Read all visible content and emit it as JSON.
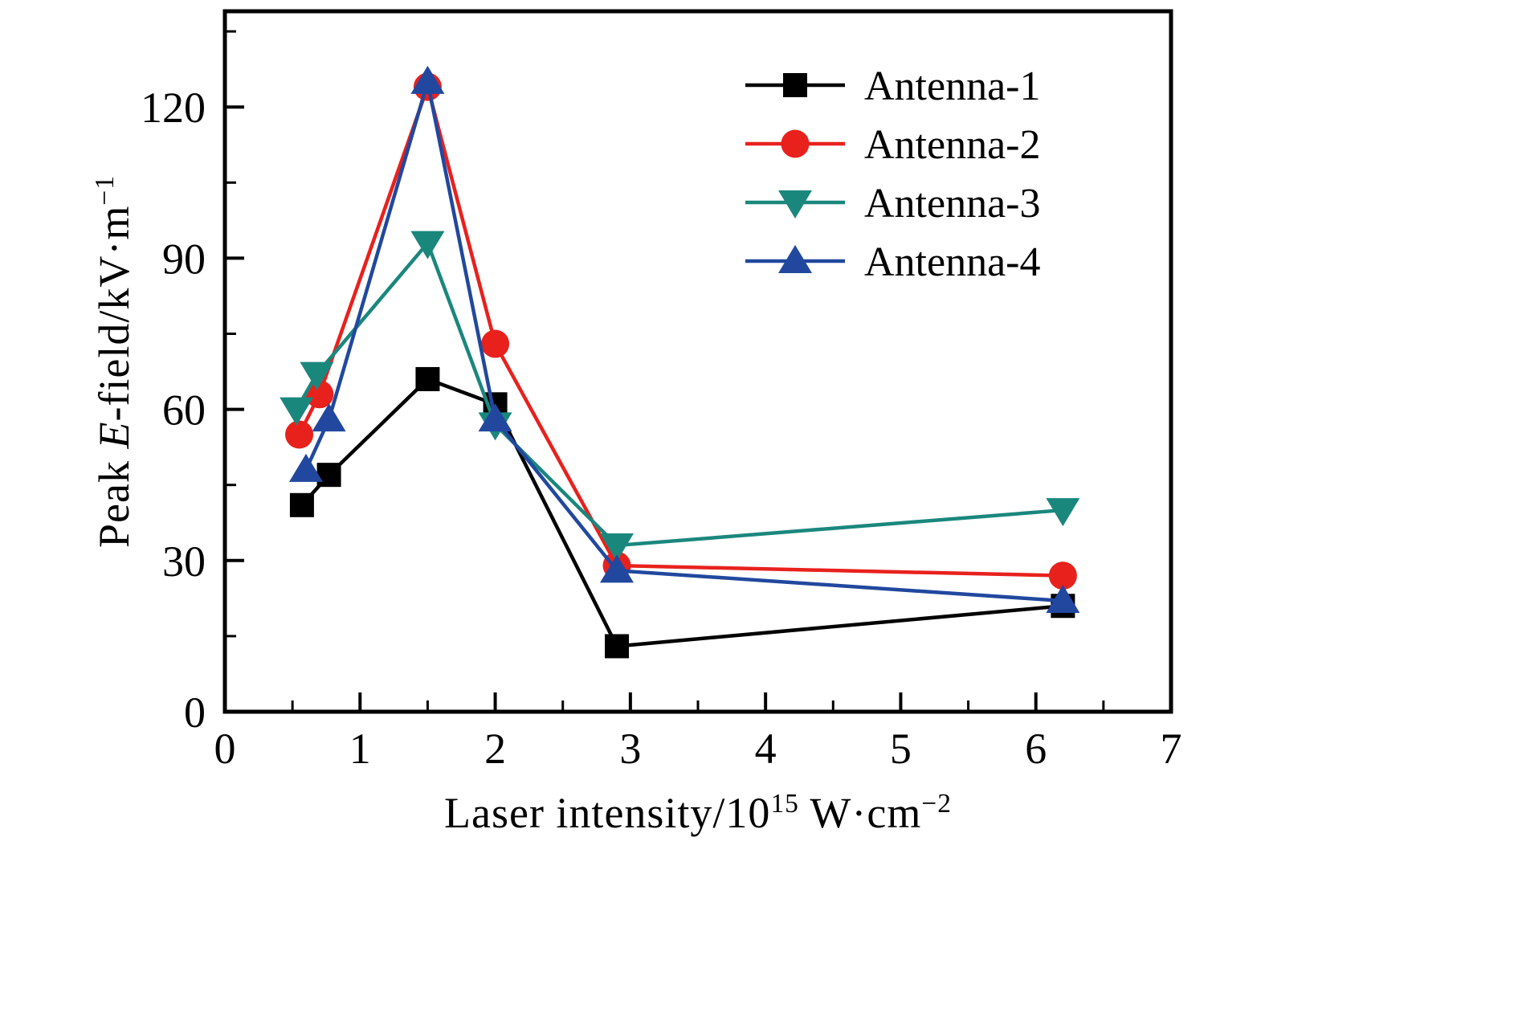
{
  "figure": {
    "background": "#ffffff",
    "frame_color": "#000000"
  },
  "labels": {
    "xlabel": {
      "pre": "Laser intensity/10",
      "sup1": "15",
      "mid": " W·cm",
      "sup2": "−2"
    },
    "ylabel": {
      "pre": "Peak ",
      "italic": "E",
      "mid": "-field/kV·m",
      "sup": "−1"
    }
  },
  "chart_data": {
    "type": "line",
    "title": "",
    "xlabel": "Laser intensity/10¹⁵ W·cm⁻²",
    "ylabel": "Peak E-field/kV·m⁻¹",
    "xlim": [
      0,
      7
    ],
    "ylim": [
      0,
      139
    ],
    "xticks": [
      0,
      1,
      2,
      3,
      4,
      5,
      6,
      7
    ],
    "yticks": [
      0,
      30,
      60,
      90,
      120
    ],
    "x_minor_step": 0.5,
    "y_minor_step": 15,
    "grid": false,
    "legend_position": "upper right",
    "legend_entries": [
      "Antenna-1",
      "Antenna-2",
      "Antenna-3",
      "Antenna-4"
    ],
    "series": [
      {
        "name": "Antenna-1",
        "color": "#000000",
        "marker": "square",
        "points": [
          [
            0.57,
            41
          ],
          [
            0.77,
            47
          ],
          [
            1.5,
            66
          ],
          [
            2.0,
            61
          ],
          [
            2.9,
            13
          ],
          [
            6.2,
            21
          ]
        ]
      },
      {
        "name": "Antenna-2",
        "color": "#e8211d",
        "marker": "circle",
        "points": [
          [
            0.55,
            55
          ],
          [
            0.7,
            63
          ],
          [
            1.5,
            124
          ],
          [
            2.0,
            73
          ],
          [
            2.9,
            29
          ],
          [
            6.2,
            27
          ]
        ]
      },
      {
        "name": "Antenna-3",
        "color": "#1a877d",
        "marker": "triangle-down",
        "points": [
          [
            0.53,
            60
          ],
          [
            0.68,
            67
          ],
          [
            1.5,
            93
          ],
          [
            2.0,
            57
          ],
          [
            2.9,
            33
          ],
          [
            6.2,
            40
          ]
        ]
      },
      {
        "name": "Antenna-4",
        "color": "#21489e",
        "marker": "triangle-up",
        "points": [
          [
            0.6,
            48
          ],
          [
            0.77,
            58
          ],
          [
            1.5,
            125
          ],
          [
            2.0,
            58
          ],
          [
            2.9,
            28
          ],
          [
            6.2,
            22
          ]
        ]
      }
    ]
  }
}
